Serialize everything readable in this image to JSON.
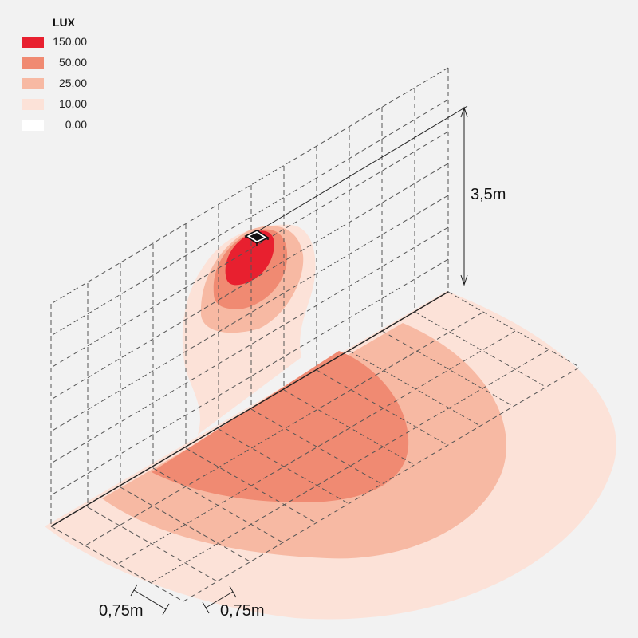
{
  "legend": {
    "title": "LUX",
    "items": [
      {
        "label": "150,00",
        "color": "#e8202f"
      },
      {
        "label": "50,00",
        "color": "#f08a72"
      },
      {
        "label": "25,00",
        "color": "#f7b9a3"
      },
      {
        "label": "10,00",
        "color": "#fce2d8"
      },
      {
        "label": "0,00",
        "color": "#ffffff"
      }
    ]
  },
  "dimensions": {
    "height_label": "3,5m",
    "grid_spacing_label_1": "0,75m",
    "grid_spacing_label_2": "0,75m"
  },
  "colors": {
    "background": "#f2f2f2",
    "grid_line": "#555555",
    "lux_150": "#e8202f",
    "lux_50": "#f08a72",
    "lux_25": "#f7b9a3",
    "lux_10": "#fce2d8"
  },
  "luminaire": {
    "icon": "wall-luminaire-icon"
  }
}
